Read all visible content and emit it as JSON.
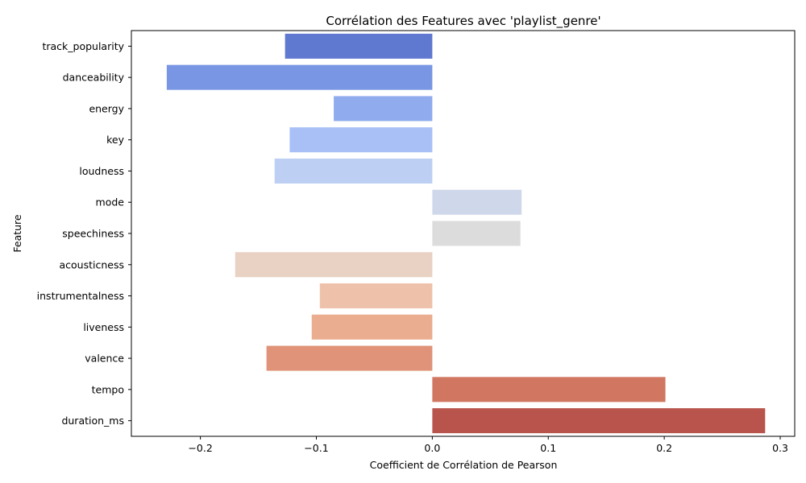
{
  "chart_data": {
    "type": "bar",
    "orientation": "horizontal",
    "title": "Corrélation des Features avec 'playlist_genre'",
    "xlabel": "Coefficient de Corrélation de Pearson",
    "ylabel": "Feature",
    "xlim": [
      -0.2595,
      0.3125
    ],
    "xticks": [
      -0.2,
      -0.1,
      0.0,
      0.1,
      0.2,
      0.3
    ],
    "xtick_labels": [
      "−0.2",
      "−0.1",
      "0.0",
      "0.1",
      "0.2",
      "0.3"
    ],
    "grid": false,
    "legend": false,
    "categories": [
      "track_popularity",
      "danceability",
      "energy",
      "key",
      "loudness",
      "mode",
      "speechiness",
      "acousticness",
      "instrumentalness",
      "liveness",
      "valence",
      "tempo",
      "duration_ms"
    ],
    "values": [
      -0.127,
      -0.229,
      -0.085,
      -0.123,
      -0.136,
      0.077,
      0.076,
      -0.17,
      -0.097,
      -0.104,
      -0.143,
      0.201,
      0.287
    ],
    "colors": [
      "#6079d0",
      "#7896e3",
      "#90acee",
      "#a8c0f6",
      "#bdd0f4",
      "#cfd8ea",
      "#dcdcdc",
      "#e9d1c4",
      "#eec2aa",
      "#eaad8f",
      "#e09378",
      "#d07661",
      "#b8544c"
    ]
  }
}
